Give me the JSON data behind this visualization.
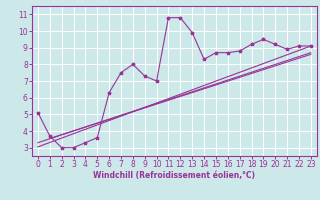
{
  "title": "",
  "xlabel": "Windchill (Refroidissement éolien,°C)",
  "ylabel": "",
  "bg_color": "#cce8e8",
  "grid_color": "#ffffff",
  "line_color": "#993399",
  "xlim": [
    -0.5,
    23.5
  ],
  "ylim": [
    2.5,
    11.5
  ],
  "xticks": [
    0,
    1,
    2,
    3,
    4,
    5,
    6,
    7,
    8,
    9,
    10,
    11,
    12,
    13,
    14,
    15,
    16,
    17,
    18,
    19,
    20,
    21,
    22,
    23
  ],
  "yticks": [
    3,
    4,
    5,
    6,
    7,
    8,
    9,
    10,
    11
  ],
  "scatter_x": [
    0,
    1,
    2,
    3,
    4,
    5,
    6,
    7,
    8,
    9,
    10,
    11,
    12,
    13,
    14,
    15,
    16,
    17,
    18,
    19,
    20,
    21,
    22,
    23
  ],
  "scatter_y": [
    5.1,
    3.7,
    3.0,
    3.0,
    3.3,
    3.6,
    6.3,
    7.5,
    8.0,
    7.3,
    7.0,
    10.8,
    10.8,
    9.9,
    8.3,
    8.7,
    8.7,
    8.8,
    9.2,
    9.5,
    9.2,
    8.9,
    9.1,
    9.1
  ],
  "line1_x": [
    0,
    23
  ],
  "line1_y": [
    3.3,
    8.7
  ],
  "line2_x": [
    0,
    23
  ],
  "line2_y": [
    3.05,
    9.1
  ],
  "line3_x": [
    1,
    23
  ],
  "line3_y": [
    3.55,
    8.6
  ],
  "marker_size": 2.5,
  "line_width": 0.8,
  "tick_fontsize": 5.5,
  "xlabel_fontsize": 5.5
}
